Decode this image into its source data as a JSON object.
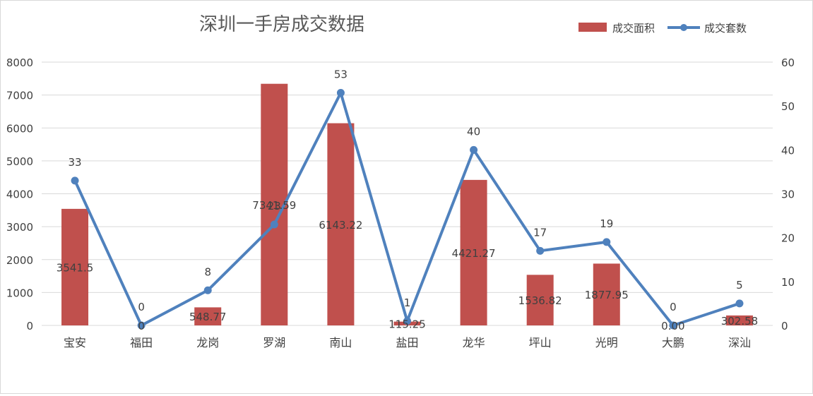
{
  "chart_data": {
    "type": "bar",
    "title": "深圳一手房成交数据",
    "categories": [
      "宝安",
      "福田",
      "龙岗",
      "罗湖",
      "南山",
      "盐田",
      "龙华",
      "坪山",
      "光明",
      "大鹏",
      "深汕"
    ],
    "series": [
      {
        "name": "成交面积",
        "type": "bar",
        "axis": "left",
        "values": [
          3541.5,
          0,
          548.77,
          7341.59,
          6143.22,
          115.25,
          4421.27,
          1536.82,
          1877.95,
          0,
          302.58
        ],
        "labels": [
          "3541.5",
          "0",
          "548.77",
          "7341.59",
          "6143.22",
          "115.25",
          "4421.27",
          "1536.82",
          "1877.95",
          "0.00",
          "302.58"
        ],
        "color": "#c0504d"
      },
      {
        "name": "成交套数",
        "type": "line",
        "axis": "right",
        "values": [
          33,
          0,
          8,
          23,
          53,
          1,
          40,
          17,
          19,
          0,
          5
        ],
        "labels": [
          "33",
          "0",
          "8",
          "23",
          "53",
          "1",
          "40",
          "17",
          "19",
          "0",
          "5"
        ],
        "color": "#4f81bd"
      }
    ],
    "y_left": {
      "min": 0,
      "max": 8000,
      "ticks": [
        "0",
        "1000",
        "2000",
        "3000",
        "4000",
        "5000",
        "6000",
        "7000",
        "8000"
      ]
    },
    "y_right": {
      "min": 0,
      "max": 60,
      "ticks": [
        "0",
        "10",
        "20",
        "30",
        "40",
        "50",
        "60"
      ]
    },
    "grid": true,
    "legend": "top-right"
  }
}
